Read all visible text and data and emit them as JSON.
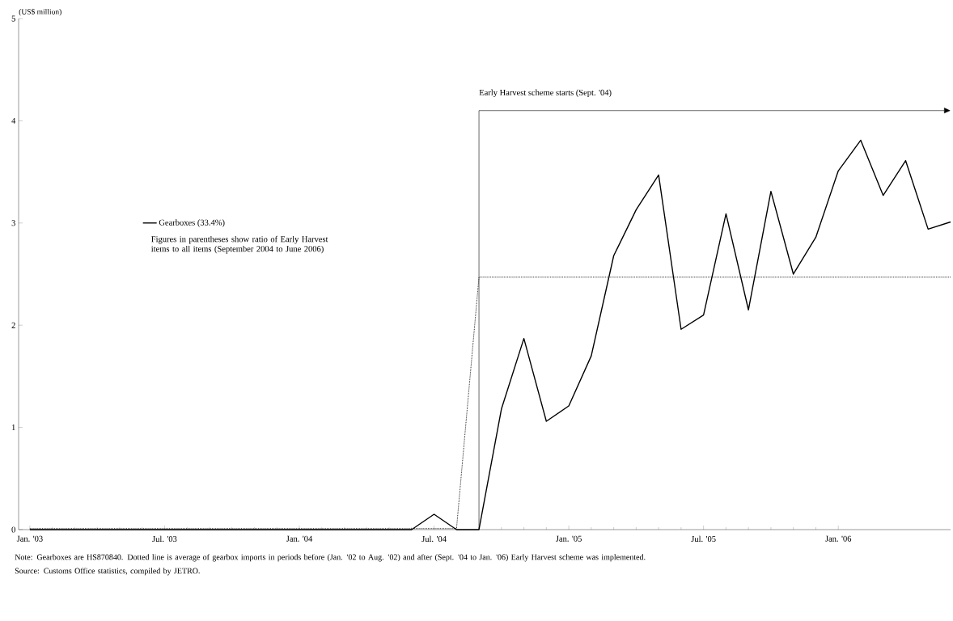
{
  "chart_data": {
    "type": "line",
    "ylabel": "(US$ million)",
    "x": [
      "2003-01",
      "2003-02",
      "2003-03",
      "2003-04",
      "2003-05",
      "2003-06",
      "2003-07",
      "2003-08",
      "2003-09",
      "2003-10",
      "2003-11",
      "2003-12",
      "2004-01",
      "2004-02",
      "2004-03",
      "2004-04",
      "2004-05",
      "2004-06",
      "2004-07",
      "2004-08",
      "2004-09",
      "2004-10",
      "2004-11",
      "2004-12",
      "2005-01",
      "2005-02",
      "2005-03",
      "2005-04",
      "2005-05",
      "2005-06",
      "2005-07",
      "2005-08",
      "2005-09",
      "2005-10",
      "2005-11",
      "2005-12",
      "2006-01",
      "2006-02",
      "2006-03",
      "2006-04",
      "2006-05",
      "2006-06"
    ],
    "series": [
      {
        "name": "Gearboxes (33.4%)",
        "color": "#000000",
        "line_style": "solid",
        "values": [
          0,
          0,
          0,
          0,
          0,
          0,
          0,
          0,
          0,
          0,
          0,
          0,
          0,
          0,
          0,
          0,
          0,
          0,
          0.15,
          0,
          0,
          1.18,
          1.87,
          1.06,
          1.21,
          1.7,
          2.68,
          3.13,
          3.47,
          1.96,
          2.1,
          3.09,
          2.15,
          3.31,
          2.5,
          2.86,
          3.51,
          3.81,
          3.27,
          3.61,
          2.94,
          3.01
        ]
      },
      {
        "color": "#000000",
        "line_style": "dotted",
        "values": [
          0.01,
          0.01,
          0.01,
          0.01,
          0.01,
          0.01,
          0.01,
          0.01,
          0.01,
          0.01,
          0.01,
          0.01,
          0.01,
          0.01,
          0.01,
          0.01,
          0.01,
          0.01,
          0.01,
          0.01,
          2.47,
          2.47,
          2.47,
          2.47,
          2.47,
          2.47,
          2.47,
          2.47,
          2.47,
          2.47,
          2.47,
          2.47,
          2.47,
          2.47,
          2.47,
          2.47,
          2.47,
          2.47,
          2.47,
          2.47,
          2.47,
          2.47
        ]
      }
    ],
    "xlim": [
      "2002-12-16",
      "2006-06"
    ],
    "xticks": [
      {
        "value": "2003-01",
        "label": "Jan. '03"
      },
      {
        "value": "2003-07",
        "label": "Jul. '03"
      },
      {
        "value": "2004-01",
        "label": "Jan. '04"
      },
      {
        "value": "2004-07",
        "label": "Jul. '04"
      },
      {
        "value": "2005-01",
        "label": "Jan. '05"
      },
      {
        "value": "2005-07",
        "label": "Jul. '05"
      },
      {
        "value": "2006-01",
        "label": "Jan. '06"
      }
    ],
    "ylim": [
      0,
      5
    ],
    "yticks": [
      0,
      1,
      2,
      3,
      4,
      5
    ],
    "grid": false,
    "legend": "left",
    "marker": "none",
    "ref_lines": [
      {
        "axis": "x",
        "value": "2004-09",
        "label": "Early Harvest scheme starts (Sept. '04)"
      }
    ],
    "annotations": [
      "Figures in parentheses show ratio of Early Harvest items to all items (September 2004 to June 2006)",
      "Note: Gearboxes are HS870840. Dotted line is average of gearbox imports in periods before (Jan. '02 to Aug. '02) and after (Sept. '04 to Jan. '06) Early Harvest scheme was implemented.",
      "Source: Customs Office statistics, compiled by JETRO."
    ]
  }
}
